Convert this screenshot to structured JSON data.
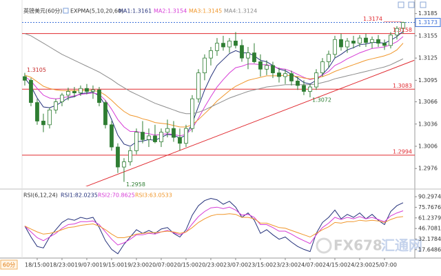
{
  "chart_data": {
    "type": "candlestick",
    "title": "英镑美元(60分)",
    "period_label": "60分",
    "indicator": "EXPMA(5,10,20,60)",
    "categories": [
      null,
      null,
      "18/15:00",
      null,
      null,
      null,
      "18/23:00",
      null,
      null,
      null,
      "19/07:00",
      null,
      null,
      null,
      "19/15:00",
      null,
      null,
      null,
      "19/23:00",
      null,
      null,
      null,
      "20/07:00",
      null,
      null,
      null,
      "20/15:00",
      null,
      null,
      null,
      "20/23:00",
      null,
      null,
      null,
      "23/07:00",
      null,
      null,
      null,
      "23/15:00",
      null,
      null,
      null,
      "23/23:00",
      null,
      null,
      null,
      "24/07:00",
      null,
      null,
      null,
      "24/15:00",
      null,
      null,
      null,
      "24/23:00",
      null,
      null,
      null,
      "25/07:00",
      null,
      null,
      null
    ],
    "open": [
      1.31,
      1.3095,
      1.3065,
      1.304,
      1.3035,
      1.3055,
      1.3066,
      1.3075,
      1.308,
      1.3078,
      1.3084,
      1.308,
      1.3082,
      1.3065,
      1.3035,
      1.3005,
      1.2978,
      1.2985,
      1.3,
      1.3025,
      1.3015,
      1.302,
      1.3012,
      1.3025,
      1.303,
      1.3018,
      1.301,
      1.303,
      1.307,
      1.3105,
      1.3125,
      1.3135,
      1.3145,
      1.314,
      1.3148,
      1.3142,
      1.3125,
      1.3132,
      1.312,
      1.311,
      1.3115,
      1.3105,
      1.31,
      1.3104,
      1.3094,
      1.3088,
      1.308,
      1.3086,
      1.3105,
      1.312,
      1.313,
      1.315,
      1.314,
      1.3148,
      1.3145,
      1.3152,
      1.3146,
      1.315,
      1.3145,
      1.3142,
      1.3156,
      1.3165
    ],
    "high": [
      1.3105,
      1.3098,
      1.307,
      1.305,
      1.3058,
      1.307,
      1.3078,
      1.3085,
      1.3086,
      1.3088,
      1.309,
      1.3088,
      1.3086,
      1.3068,
      1.304,
      1.301,
      1.299,
      1.3005,
      1.303,
      1.304,
      1.303,
      1.3035,
      1.303,
      1.3042,
      1.304,
      1.303,
      1.3035,
      1.3075,
      1.311,
      1.313,
      1.314,
      1.3152,
      1.3155,
      1.3152,
      1.316,
      1.315,
      1.314,
      1.3145,
      1.313,
      1.3122,
      1.312,
      1.3112,
      1.311,
      1.3108,
      1.31,
      1.3095,
      1.309,
      1.311,
      1.3125,
      1.3135,
      1.3155,
      1.3158,
      1.3152,
      1.3155,
      1.3156,
      1.3158,
      1.3154,
      1.3156,
      1.315,
      1.316,
      1.3168,
      1.3174
    ],
    "low": [
      1.3088,
      1.306,
      1.3035,
      1.3025,
      1.303,
      1.305,
      1.306,
      1.3068,
      1.3072,
      1.3074,
      1.3076,
      1.307,
      1.306,
      1.303,
      1.3,
      1.297,
      1.2958,
      1.298,
      1.2995,
      1.301,
      1.3005,
      1.301,
      1.3005,
      1.3018,
      1.3012,
      1.3,
      1.3005,
      1.3025,
      1.3065,
      1.3095,
      1.3115,
      1.3128,
      1.3135,
      1.3132,
      1.3138,
      1.312,
      1.311,
      1.3118,
      1.31,
      1.3102,
      1.3098,
      1.3092,
      1.309,
      1.3088,
      1.3082,
      1.3075,
      1.3072,
      1.3082,
      1.31,
      1.3112,
      1.3125,
      1.3135,
      1.3132,
      1.3138,
      1.314,
      1.314,
      1.3138,
      1.314,
      1.3136,
      1.3138,
      1.315,
      1.3158
    ],
    "close": [
      1.3095,
      1.3065,
      1.304,
      1.3035,
      1.3055,
      1.3066,
      1.3075,
      1.308,
      1.3078,
      1.3084,
      1.308,
      1.3082,
      1.3065,
      1.3035,
      1.3005,
      1.2978,
      1.2985,
      1.3,
      1.3025,
      1.3015,
      1.302,
      1.3012,
      1.3025,
      1.303,
      1.3018,
      1.301,
      1.303,
      1.307,
      1.3105,
      1.3125,
      1.3135,
      1.3145,
      1.314,
      1.3148,
      1.3142,
      1.3125,
      1.3132,
      1.312,
      1.311,
      1.3115,
      1.3105,
      1.31,
      1.3104,
      1.3094,
      1.3088,
      1.308,
      1.3086,
      1.3105,
      1.312,
      1.313,
      1.315,
      1.314,
      1.3148,
      1.3145,
      1.3152,
      1.3146,
      1.315,
      1.3145,
      1.3142,
      1.3156,
      1.3165,
      1.3173
    ],
    "color": "#2e7d32",
    "hollow_up": true,
    "xlim": [
      -0.44,
      62.89
    ],
    "ylim": [
      1.2952,
      1.3194
    ],
    "yticks": [
      1.3185,
      1.3155,
      1.3125,
      1.3095,
      1.3066,
      1.3036,
      1.3006,
      1.2976
    ],
    "series": [
      {
        "name": "MA1:1.3161",
        "color": "#23307a",
        "values": [
          1.3098,
          1.3087,
          1.3071,
          1.3059,
          1.3058,
          1.3061,
          1.3066,
          1.3071,
          1.3073,
          1.3077,
          1.3078,
          1.3079,
          1.3074,
          1.3061,
          1.3042,
          1.3021,
          1.3009,
          1.3006,
          1.3012,
          1.3013,
          1.3015,
          1.3014,
          1.3018,
          1.3022,
          1.3021,
          1.3017,
          1.3021,
          1.3037,
          1.306,
          1.3082,
          1.31,
          1.3115,
          1.3123,
          1.3131,
          1.3135,
          1.3132,
          1.3132,
          1.3128,
          1.3122,
          1.312,
          1.3115,
          1.311,
          1.3108,
          1.3103,
          1.3098,
          1.3092,
          1.309,
          1.3095,
          1.3103,
          1.3112,
          1.3125,
          1.313,
          1.3136,
          1.3139,
          1.3143,
          1.3144,
          1.3146,
          1.3146,
          1.3145,
          1.3149,
          1.3154,
          1.3161
        ]
      },
      {
        "name": "MA2:1.3154",
        "color": "#d63bd6",
        "values": [
          1.31,
          1.3094,
          1.3084,
          1.3075,
          1.3071,
          1.307,
          1.3071,
          1.3073,
          1.3074,
          1.3076,
          1.3077,
          1.3078,
          1.3076,
          1.3068,
          1.3056,
          1.3042,
          1.3032,
          1.3026,
          1.3026,
          1.3024,
          1.3023,
          1.3021,
          1.3022,
          1.3023,
          1.3022,
          1.302,
          1.3022,
          1.303,
          1.3044,
          1.3059,
          1.3073,
          1.3086,
          1.3096,
          1.3105,
          1.3112,
          1.3114,
          1.3117,
          1.3117,
          1.3116,
          1.3116,
          1.3114,
          1.3111,
          1.311,
          1.3107,
          1.3103,
          1.3099,
          1.3096,
          1.3098,
          1.3102,
          1.3107,
          1.3115,
          1.3119,
          1.3124,
          1.3128,
          1.3132,
          1.3135,
          1.3138,
          1.3139,
          1.314,
          1.3143,
          1.3147,
          1.3154
        ]
      },
      {
        "name": "MA3:1.3145",
        "color": "#f0962a",
        "values": [
          1.3102,
          1.3099,
          1.3093,
          1.3087,
          1.3084,
          1.3082,
          1.3081,
          1.3081,
          1.3081,
          1.3081,
          1.3081,
          1.3081,
          1.308,
          1.3075,
          1.3068,
          1.306,
          1.3053,
          1.3048,
          1.3046,
          1.3043,
          1.3041,
          1.3038,
          1.3037,
          1.3036,
          1.3034,
          1.3032,
          1.3032,
          1.3035,
          1.3042,
          1.305,
          1.3058,
          1.3067,
          1.3074,
          1.3081,
          1.3087,
          1.3091,
          1.3095,
          1.3097,
          1.3099,
          1.3101,
          1.3101,
          1.3101,
          1.3102,
          1.3101,
          1.31,
          1.3098,
          1.3097,
          1.3098,
          1.31,
          1.3103,
          1.3107,
          1.311,
          1.3113,
          1.3116,
          1.3119,
          1.3122,
          1.3124,
          1.3126,
          1.3128,
          1.3131,
          1.3136,
          1.3145
        ]
      },
      {
        "name": "MA4:1.3124",
        "color": "#8c8c8c",
        "values": [
          1.3158,
          1.3155,
          1.315,
          1.3145,
          1.314,
          1.3135,
          1.313,
          1.3126,
          1.3122,
          1.3118,
          1.3114,
          1.311,
          1.3106,
          1.3101,
          1.3096,
          1.309,
          1.3085,
          1.308,
          1.3076,
          1.3072,
          1.3068,
          1.3064,
          1.3061,
          1.3058,
          1.3055,
          1.3052,
          1.305,
          1.305,
          1.3052,
          1.3055,
          1.3059,
          1.3063,
          1.3067,
          1.3071,
          1.3074,
          1.3077,
          1.308,
          1.3082,
          1.3084,
          1.3086,
          1.3087,
          1.3088,
          1.3089,
          1.3089,
          1.3089,
          1.3089,
          1.3089,
          1.309,
          1.3092,
          1.3094,
          1.3097,
          1.3099,
          1.3101,
          1.3103,
          1.3105,
          1.3107,
          1.3109,
          1.3111,
          1.3113,
          1.3116,
          1.312,
          1.3124
        ]
      }
    ],
    "levels": [
      {
        "label": "1.3158",
        "value": 1.3158,
        "color": "#e0282e"
      },
      {
        "label": "1.3083",
        "value": 1.3083,
        "color": "#e0282e"
      },
      {
        "label": "1.2994",
        "value": 1.2994,
        "color": "#e0282e"
      }
    ],
    "last_price": {
      "label": "1.3173",
      "value": 1.3173,
      "color": "#3a6fd8"
    },
    "annotations": [
      {
        "label": "1.3105",
        "candle": 0,
        "value": 1.3105
      },
      {
        "label": "1.2958",
        "candle": 16,
        "value": 1.2958
      },
      {
        "label": "1.3072",
        "candle": 46,
        "value": 1.3072
      },
      {
        "label": "1.3174",
        "candle": 61,
        "value": 1.3174
      }
    ],
    "trendline": {
      "x": [
        9,
        62.8
      ],
      "values": [
        1.2949,
        1.3122
      ],
      "color": "#e0282e"
    },
    "rsi": {
      "title": "RSI(6,12,24)",
      "ylim": [
        8,
        97
      ],
      "yticks": [
        90.2974,
        75.7676,
        61.2379,
        46.7081,
        32.1784,
        17.6486
      ],
      "series": [
        {
          "name": "RSI1:82.0235",
          "color": "#23307a",
          "values": [
            50,
            35,
            22,
            20,
            35,
            45,
            55,
            60,
            58,
            62,
            60,
            62,
            48,
            30,
            18,
            12,
            25,
            35,
            45,
            40,
            44,
            40,
            46,
            48,
            40,
            35,
            45,
            65,
            78,
            85,
            88,
            86,
            80,
            84,
            76,
            62,
            68,
            58,
            40,
            45,
            38,
            32,
            35,
            28,
            22,
            18,
            15,
            40,
            55,
            62,
            72,
            60,
            66,
            62,
            68,
            60,
            66,
            58,
            52,
            70,
            78,
            82
          ]
        },
        {
          "name": "RSI2:70.8625",
          "color": "#d63bd6",
          "values": [
            50,
            42,
            34,
            30,
            35,
            40,
            47,
            52,
            53,
            56,
            56,
            57,
            52,
            42,
            32,
            24,
            27,
            32,
            38,
            38,
            40,
            39,
            42,
            44,
            41,
            38,
            42,
            53,
            63,
            70,
            75,
            76,
            74,
            76,
            72,
            65,
            66,
            62,
            52,
            52,
            48,
            43,
            43,
            39,
            34,
            30,
            26,
            38,
            48,
            54,
            62,
            59,
            62,
            60,
            63,
            60,
            62,
            59,
            56,
            64,
            68,
            71
          ]
        },
        {
          "name": "RSI3:63.0533",
          "color": "#f0962a",
          "values": [
            50,
            46,
            42,
            39,
            40,
            42,
            45,
            48,
            49,
            51,
            52,
            53,
            50,
            45,
            39,
            34,
            34,
            36,
            39,
            40,
            41,
            41,
            42,
            43,
            42,
            40,
            42,
            48,
            55,
            60,
            64,
            66,
            66,
            67,
            66,
            62,
            62,
            60,
            54,
            54,
            51,
            48,
            47,
            44,
            41,
            38,
            35,
            40,
            45,
            49,
            55,
            54,
            56,
            56,
            58,
            57,
            58,
            57,
            55,
            59,
            62,
            63
          ]
        }
      ]
    }
  },
  "watermark": [
    "FX678",
    "汇通网"
  ]
}
